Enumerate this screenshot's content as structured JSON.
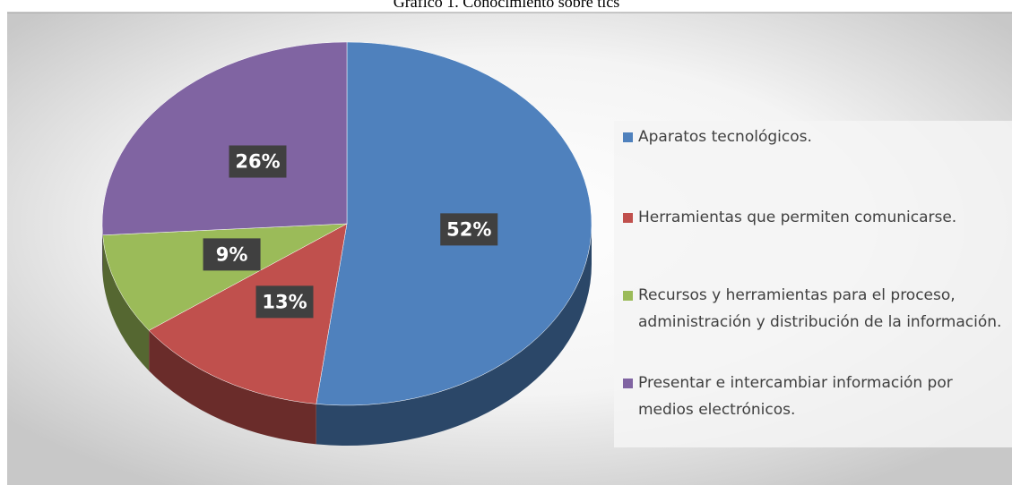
{
  "chart_data": {
    "type": "pie",
    "title": "Gráfico 1. Conocimiento sobre tics",
    "categories": [
      "Aparatos tecnológicos.",
      "Herramientas que permiten comunicarse.",
      "Recursos y herramientas para el proceso, administración y distribución de la información.",
      "Presentar e intercambiar información por medios electrónicos."
    ],
    "values": [
      52,
      13,
      9,
      26
    ],
    "value_labels": [
      "52%",
      "13%",
      "9%",
      "26%"
    ],
    "colors": [
      "#4f81bd",
      "#c0504d",
      "#9bbb59",
      "#8064a2"
    ],
    "legend": "right"
  }
}
